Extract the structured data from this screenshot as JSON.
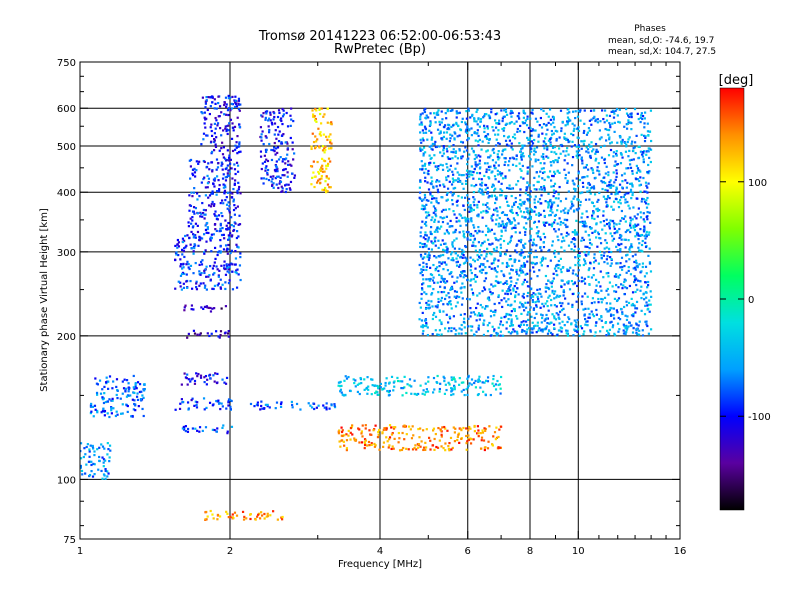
{
  "chart_data": {
    "type": "scatter",
    "title": "Tromsø 20141223 06:52:00-06:53:43",
    "subtitle": "RwPretec (Bp)",
    "xlabel": "Frequency [MHz]",
    "ylabel": "Stationary phase Virtual Height [km]",
    "x_scale": "log",
    "y_scale": "log",
    "xlim": [
      1,
      16
    ],
    "ylim": [
      75,
      750
    ],
    "x_ticks": [
      1,
      2,
      4,
      6,
      8,
      10,
      16
    ],
    "x_tick_labels": [
      "1",
      "2",
      "4",
      "6",
      "8",
      "10",
      "16"
    ],
    "y_ticks": [
      75,
      100,
      200,
      300,
      400,
      500,
      600,
      750
    ],
    "y_tick_labels": [
      "75",
      "100",
      "200",
      "300",
      "400",
      "500",
      "600",
      "750"
    ],
    "x_grid": [
      2,
      4,
      6,
      8,
      10
    ],
    "y_grid": [
      100,
      200,
      300,
      400,
      500,
      600
    ],
    "grid": true,
    "stats_heading": "Phases",
    "stats_lines": [
      "mean, sd,O: -74.6, 19.7",
      "mean, sd,X: 104.7, 27.5"
    ],
    "colorbar": {
      "label": "[deg]",
      "min": -180,
      "max": 180,
      "ticks": [
        100,
        0,
        -100
      ],
      "tick_labels": [
        "100",
        "0",
        "-100"
      ],
      "colors": [
        "#000000",
        "#5a00a0",
        "#0000ff",
        "#00a0ff",
        "#00e0e0",
        "#00ff60",
        "#80ff00",
        "#ffff00",
        "#ff9000",
        "#ff0000"
      ]
    },
    "clusters": [
      {
        "x": [
          1.05,
          1.35
        ],
        "y": [
          135,
          165
        ],
        "phase": -75
      },
      {
        "x": [
          1.0,
          1.15
        ],
        "y": [
          100,
          120
        ],
        "phase": -60
      },
      {
        "x": [
          1.55,
          2.05
        ],
        "y": [
          140,
          148
        ],
        "phase": -95
      },
      {
        "x": [
          1.6,
          2.0
        ],
        "y": [
          158,
          168
        ],
        "phase": -100
      },
      {
        "x": [
          1.6,
          2.05
        ],
        "y": [
          125,
          130
        ],
        "phase": -80
      },
      {
        "x": [
          1.6,
          2.0
        ],
        "y": [
          198,
          205
        ],
        "phase": -125
      },
      {
        "x": [
          1.6,
          2.0
        ],
        "y": [
          225,
          232
        ],
        "phase": -130
      },
      {
        "x": [
          1.55,
          2.1
        ],
        "y": [
          250,
          330
        ],
        "phase": -90
      },
      {
        "x": [
          1.65,
          2.1
        ],
        "y": [
          330,
          470
        ],
        "phase": -95
      },
      {
        "x": [
          1.75,
          2.1
        ],
        "y": [
          470,
          640
        ],
        "phase": -100
      },
      {
        "x": [
          2.3,
          2.7
        ],
        "y": [
          400,
          600
        ],
        "phase": -100
      },
      {
        "x": [
          2.2,
          3.3
        ],
        "y": [
          140,
          146
        ],
        "phase": -85
      },
      {
        "x": [
          2.9,
          3.2
        ],
        "y": [
          400,
          600
        ],
        "phase": 120
      },
      {
        "x": [
          1.75,
          2.6
        ],
        "y": [
          82,
          86
        ],
        "phase": 140
      },
      {
        "x": [
          3.3,
          7.0
        ],
        "y": [
          150,
          165
        ],
        "phase": -40
      },
      {
        "x": [
          4.8,
          14.0
        ],
        "y": [
          200,
          600
        ],
        "phase": -60
      },
      {
        "x": [
          3.3,
          7.0
        ],
        "y": [
          115,
          130
        ],
        "phase": 145
      }
    ]
  }
}
